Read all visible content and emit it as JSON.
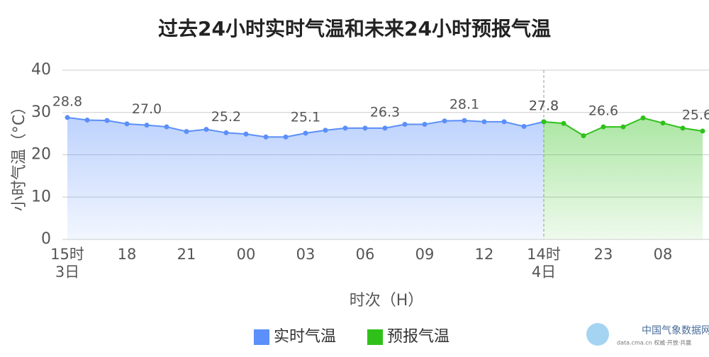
{
  "chart_data": {
    "type": "line",
    "title": "过去24小时实时气温和未来24小时预报气温",
    "y_label": "小时气温（°C）",
    "x_label": "时次（H）",
    "categories": [
      "15时",
      null,
      null,
      "18",
      null,
      null,
      "21",
      null,
      null,
      "00",
      null,
      null,
      "03",
      null,
      null,
      "06",
      null,
      null,
      "09",
      null,
      null,
      "12",
      null,
      null,
      "14时",
      null,
      null,
      "23",
      null,
      null,
      "08",
      null,
      null
    ],
    "category_dates": [
      "3日",
      null,
      null,
      null,
      null,
      null,
      null,
      null,
      null,
      null,
      null,
      null,
      null,
      null,
      null,
      null,
      null,
      null,
      null,
      null,
      null,
      null,
      null,
      null,
      "4日",
      null,
      null,
      null,
      null,
      null,
      null,
      null,
      null
    ],
    "series": [
      {
        "name": "实时气温",
        "color": "#5b8ff9",
        "values": [
          28.8,
          28.2,
          28.1,
          27.3,
          27.0,
          26.6,
          25.5,
          26.0,
          25.2,
          24.9,
          24.2,
          24.2,
          25.1,
          25.8,
          26.3,
          26.3,
          26.3,
          27.2,
          27.2,
          28.0,
          28.1,
          27.8,
          27.8,
          26.7,
          27.8,
          null,
          null,
          null,
          null,
          null,
          null,
          null,
          null
        ],
        "value_labels": [
          "28.8",
          null,
          null,
          null,
          "27.0",
          null,
          null,
          null,
          "25.2",
          null,
          null,
          null,
          "25.1",
          null,
          null,
          null,
          "26.3",
          null,
          null,
          null,
          "28.1",
          null,
          null,
          null,
          "27.8",
          null,
          null,
          null,
          null,
          null,
          null,
          null,
          null
        ]
      },
      {
        "name": "预报气温",
        "color": "#2fc11a",
        "values": [
          null,
          null,
          null,
          null,
          null,
          null,
          null,
          null,
          null,
          null,
          null,
          null,
          null,
          null,
          null,
          null,
          null,
          null,
          null,
          null,
          null,
          null,
          null,
          null,
          27.8,
          27.4,
          24.5,
          26.6,
          26.6,
          28.7,
          27.5,
          26.3,
          25.6
        ],
        "value_labels": [
          null,
          null,
          null,
          null,
          null,
          null,
          null,
          null,
          null,
          null,
          null,
          null,
          null,
          null,
          null,
          null,
          null,
          null,
          null,
          null,
          null,
          null,
          null,
          null,
          "27.8",
          null,
          null,
          "26.6",
          null,
          null,
          null,
          null,
          "25.6"
        ]
      }
    ],
    "ylim": [
      0,
      40
    ],
    "yticks": [
      0,
      10,
      20,
      30,
      40
    ],
    "grid": true,
    "watermark": {
      "name": "中国气象数据网",
      "tagline": "data.cma.cn 权威·开放·共赢"
    }
  }
}
